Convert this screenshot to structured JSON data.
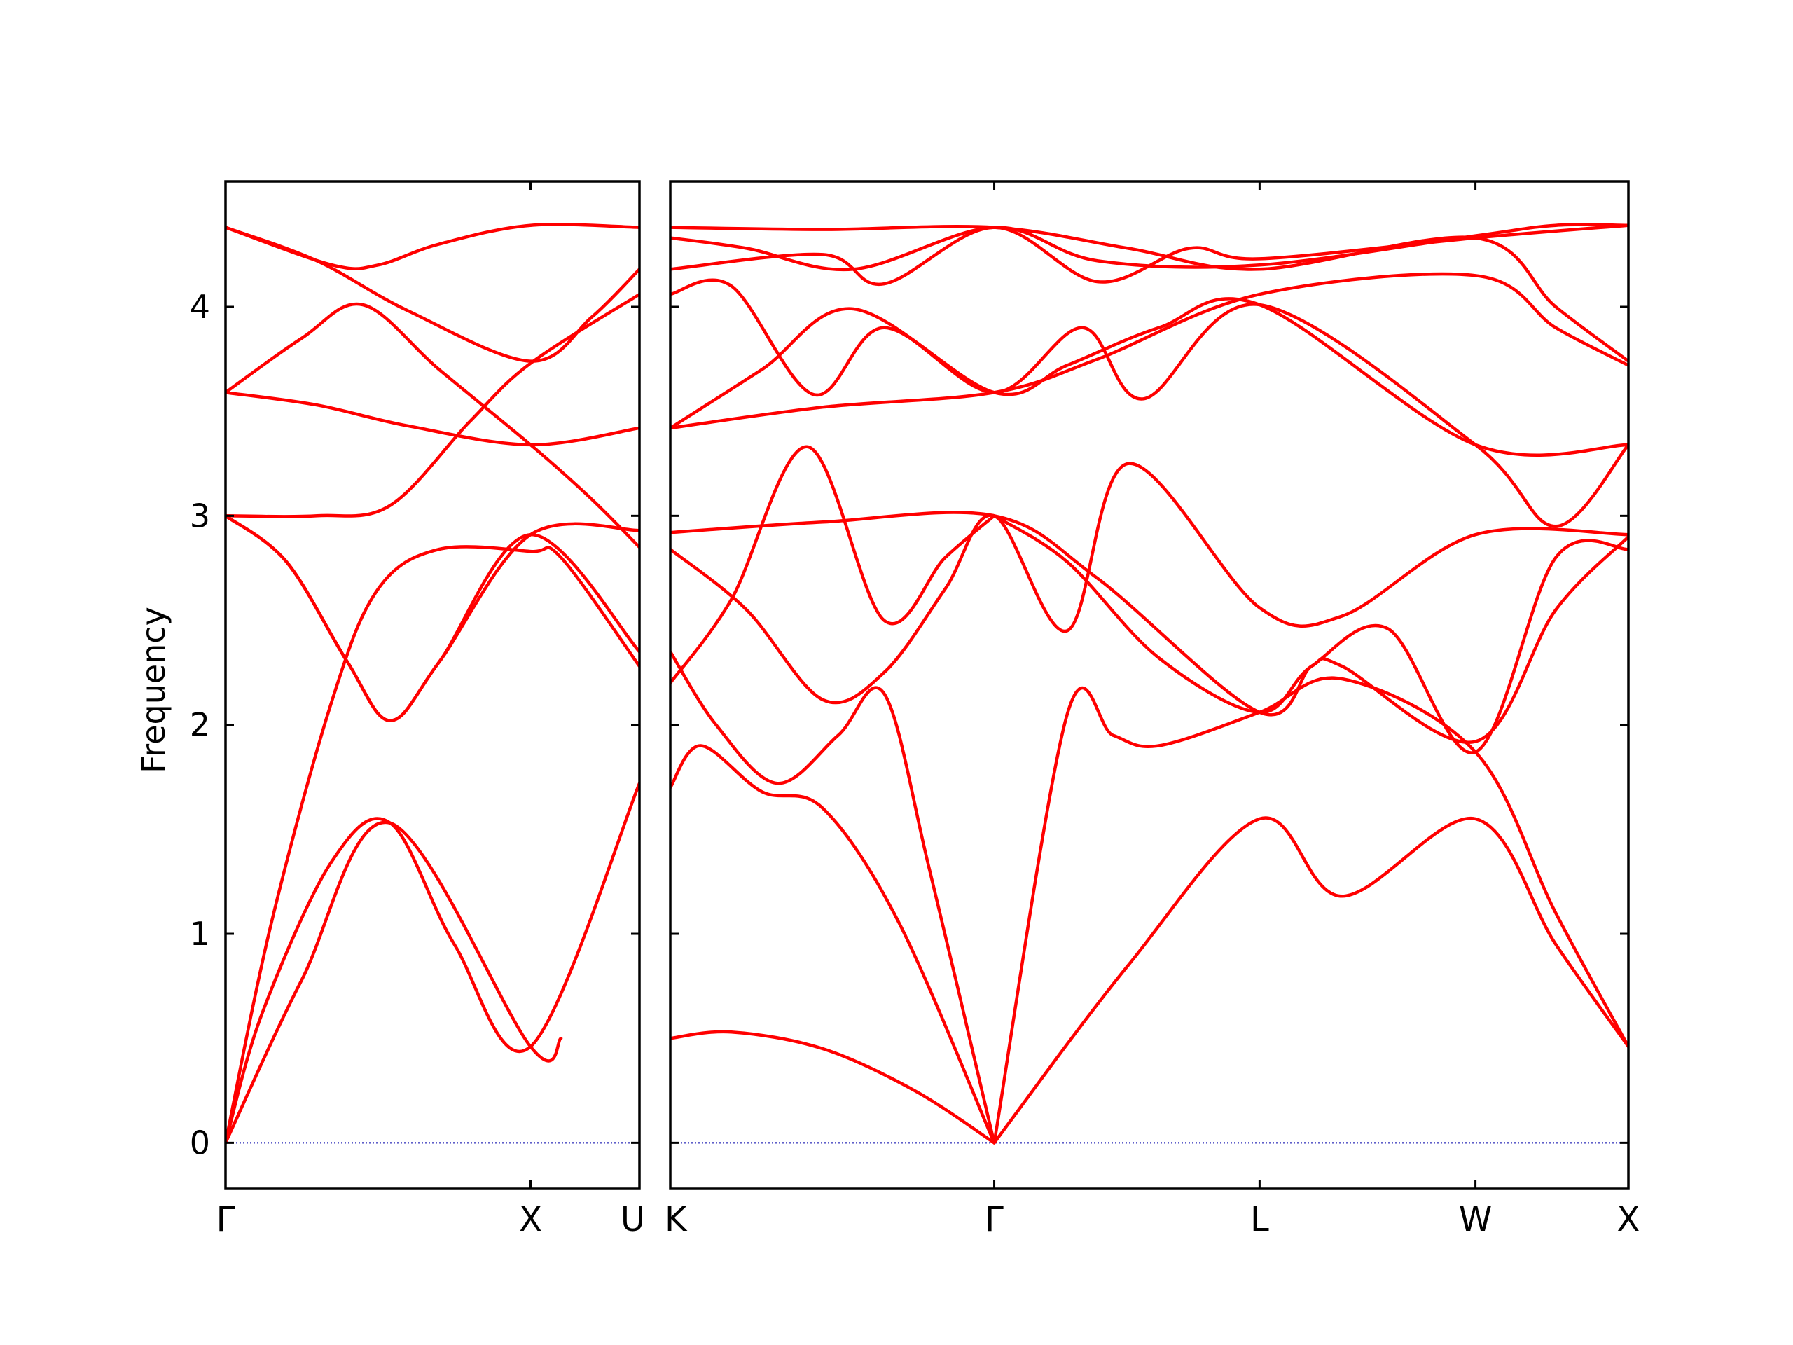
{
  "chart_data": {
    "type": "line",
    "title": "",
    "ylabel": "Frequency",
    "xlabel": "",
    "ylim": [
      -0.22,
      4.6
    ],
    "yticks": [
      0,
      1,
      2,
      3,
      4
    ],
    "yticklabels": [
      "0",
      "1",
      "2",
      "3",
      "4"
    ],
    "grid": false,
    "colors": {
      "bands": "#ff0000",
      "zero_line": "#0000aa",
      "axes": "#000000"
    },
    "panels": [
      {
        "name": "panel-gamma-x-u",
        "xlim": [
          0,
          1.357
        ],
        "xticks": [
          0,
          1.0,
          1.357
        ],
        "xticklabels": [
          "Γ",
          "X",
          "U"
        ],
        "bands": [
          [
            [
              0,
              0
            ],
            [
              0.25,
              0.78
            ],
            [
              0.54,
              1.53
            ],
            [
              1.0,
              0.46
            ],
            [
              1.1,
              0.5
            ]
          ],
          [
            [
              0,
              0
            ],
            [
              0.12,
              0.62
            ],
            [
              0.35,
              1.35
            ],
            [
              0.54,
              1.53
            ],
            [
              0.75,
              0.95
            ],
            [
              1.0,
              0.46
            ],
            [
              1.357,
              1.72
            ]
          ],
          [
            [
              0,
              0
            ],
            [
              0.15,
              1.05
            ],
            [
              0.35,
              2.12
            ],
            [
              0.5,
              2.65
            ],
            [
              0.7,
              2.84
            ],
            [
              1.0,
              2.83
            ],
            [
              1.1,
              2.8
            ],
            [
              1.357,
              2.28
            ]
          ],
          [
            [
              0,
              3.0
            ],
            [
              0.2,
              2.78
            ],
            [
              0.4,
              2.3
            ],
            [
              0.54,
              2.02
            ],
            [
              0.7,
              2.3
            ],
            [
              1.0,
              2.91
            ],
            [
              1.357,
              2.93
            ]
          ],
          [
            [
              0,
              3.0
            ],
            [
              0.3,
              3.0
            ],
            [
              0.54,
              3.05
            ],
            [
              0.8,
              3.45
            ],
            [
              1.0,
              3.73
            ],
            [
              1.357,
              4.06
            ]
          ],
          [
            [
              0,
              3.59
            ],
            [
              0.3,
              3.53
            ],
            [
              0.6,
              3.43
            ],
            [
              1.0,
              3.34
            ],
            [
              1.357,
              3.42
            ]
          ],
          [
            [
              0,
              3.59
            ],
            [
              0.25,
              3.85
            ],
            [
              0.45,
              4.01
            ],
            [
              0.7,
              3.7
            ],
            [
              1.0,
              3.34
            ],
            [
              1.2,
              3.08
            ],
            [
              1.357,
              2.85
            ]
          ],
          [
            [
              0,
              4.38
            ],
            [
              0.35,
              4.2
            ],
            [
              0.5,
              4.2
            ],
            [
              0.7,
              4.3
            ],
            [
              1.0,
              4.39
            ],
            [
              1.357,
              4.38
            ]
          ],
          [
            [
              0,
              4.38
            ],
            [
              0.3,
              4.22
            ],
            [
              0.6,
              3.98
            ],
            [
              1.0,
              3.74
            ],
            [
              1.2,
              3.95
            ],
            [
              1.357,
              4.18
            ]
          ],
          [
            [
              0,
              3.0
            ],
            [
              0.2,
              2.78
            ],
            [
              0.4,
              2.3
            ],
            [
              0.54,
              2.02
            ],
            [
              0.7,
              2.3
            ],
            [
              1.0,
              2.91
            ],
            [
              1.357,
              2.35
            ]
          ]
        ]
      },
      {
        "name": "panel-k-gamma-l-w-x",
        "xlim": [
          0,
          3.138
        ],
        "xticks": [
          0,
          1.061,
          1.93,
          2.637,
          3.138
        ],
        "xticklabels": [
          "K",
          "Γ",
          "L",
          "W",
          "X"
        ],
        "bands": [
          [
            [
              0,
              0.5
            ],
            [
              0.2,
              0.53
            ],
            [
              0.5,
              0.45
            ],
            [
              0.8,
              0.25
            ],
            [
              1.061,
              0
            ]
          ],
          [
            [
              0,
              1.7
            ],
            [
              0.1,
              1.9
            ],
            [
              0.3,
              1.68
            ],
            [
              0.5,
              1.6
            ],
            [
              0.75,
              1.05
            ],
            [
              1.061,
              0
            ]
          ],
          [
            [
              0,
              2.35
            ],
            [
              0.15,
              2.0
            ],
            [
              0.35,
              1.72
            ],
            [
              0.55,
              1.95
            ],
            [
              0.7,
              2.15
            ],
            [
              0.85,
              1.3
            ],
            [
              1.061,
              0
            ]
          ],
          [
            [
              1.061,
              0
            ],
            [
              1.5,
              0.85
            ],
            [
              1.93,
              1.55
            ],
            [
              2.2,
              1.18
            ],
            [
              2.637,
              1.55
            ],
            [
              2.9,
              0.95
            ],
            [
              3.138,
              0.46
            ]
          ],
          [
            [
              1.061,
              0
            ],
            [
              1.3,
              2.05
            ],
            [
              1.45,
              1.95
            ],
            [
              1.6,
              1.9
            ],
            [
              1.93,
              2.06
            ],
            [
              2.2,
              2.22
            ],
            [
              2.637,
              1.87
            ],
            [
              2.9,
              1.1
            ],
            [
              3.138,
              0.46
            ]
          ],
          [
            [
              0,
              2.84
            ],
            [
              0.25,
              2.55
            ],
            [
              0.5,
              2.12
            ],
            [
              0.7,
              2.25
            ],
            [
              0.9,
              2.65
            ],
            [
              1.061,
              3.0
            ],
            [
              1.3,
              2.45
            ],
            [
              1.5,
              3.25
            ],
            [
              1.93,
              2.56
            ],
            [
              2.2,
              2.52
            ],
            [
              2.637,
              2.91
            ],
            [
              3.138,
              2.91
            ]
          ],
          [
            [
              0,
              2.92
            ],
            [
              0.5,
              2.97
            ],
            [
              1.061,
              3.0
            ],
            [
              1.4,
              2.7
            ],
            [
              1.93,
              2.06
            ],
            [
              2.1,
              2.28
            ],
            [
              2.2,
              2.28
            ],
            [
              2.637,
              1.92
            ],
            [
              2.9,
              2.55
            ],
            [
              3.138,
              2.9
            ]
          ],
          [
            [
              0,
              2.2
            ],
            [
              0.2,
              2.6
            ],
            [
              0.45,
              3.33
            ],
            [
              0.7,
              2.5
            ],
            [
              0.9,
              2.8
            ],
            [
              1.061,
              3.0
            ]
          ],
          [
            [
              1.061,
              3.0
            ],
            [
              1.3,
              2.78
            ],
            [
              1.6,
              2.32
            ],
            [
              1.93,
              2.06
            ],
            [
              2.1,
              2.28
            ],
            [
              2.35,
              2.46
            ],
            [
              2.637,
              1.87
            ],
            [
              2.9,
              2.8
            ],
            [
              3.138,
              2.84
            ]
          ],
          [
            [
              0,
              3.42
            ],
            [
              0.5,
              3.52
            ],
            [
              1.061,
              3.59
            ],
            [
              1.4,
              3.75
            ],
            [
              1.93,
              4.06
            ],
            [
              2.637,
              4.15
            ],
            [
              2.9,
              3.9
            ],
            [
              3.138,
              3.72
            ]
          ],
          [
            [
              0,
              3.42
            ],
            [
              0.3,
              3.7
            ],
            [
              0.6,
              3.99
            ],
            [
              1.061,
              3.59
            ],
            [
              1.3,
              3.72
            ],
            [
              1.6,
              3.9
            ],
            [
              1.93,
              4.01
            ],
            [
              2.637,
              3.34
            ],
            [
              3.138,
              3.34
            ]
          ],
          [
            [
              0,
              4.06
            ],
            [
              0.2,
              4.1
            ],
            [
              0.47,
              3.58
            ],
            [
              0.7,
              3.9
            ],
            [
              1.061,
              3.59
            ],
            [
              1.35,
              3.9
            ],
            [
              1.55,
              3.56
            ],
            [
              1.93,
              4.01
            ],
            [
              2.637,
              3.34
            ],
            [
              2.9,
              2.95
            ],
            [
              3.138,
              3.34
            ]
          ],
          [
            [
              0,
              4.18
            ],
            [
              0.5,
              4.25
            ],
            [
              0.7,
              4.11
            ],
            [
              1.061,
              4.38
            ],
            [
              1.4,
              4.12
            ],
            [
              1.7,
              4.28
            ],
            [
              1.93,
              4.23
            ],
            [
              2.637,
              4.33
            ],
            [
              3.138,
              4.39
            ]
          ],
          [
            [
              0,
              4.38
            ],
            [
              0.5,
              4.37
            ],
            [
              1.061,
              4.38
            ],
            [
              1.5,
              4.28
            ],
            [
              1.93,
              4.18
            ],
            [
              2.637,
              4.33
            ],
            [
              2.9,
              4.0
            ],
            [
              3.138,
              3.74
            ]
          ],
          [
            [
              0,
              4.33
            ],
            [
              0.25,
              4.28
            ],
            [
              0.6,
              4.18
            ],
            [
              1.061,
              4.38
            ],
            [
              1.4,
              4.22
            ],
            [
              1.93,
              4.2
            ],
            [
              2.637,
              4.34
            ],
            [
              2.9,
              4.39
            ],
            [
              3.138,
              4.39
            ]
          ]
        ]
      }
    ]
  }
}
